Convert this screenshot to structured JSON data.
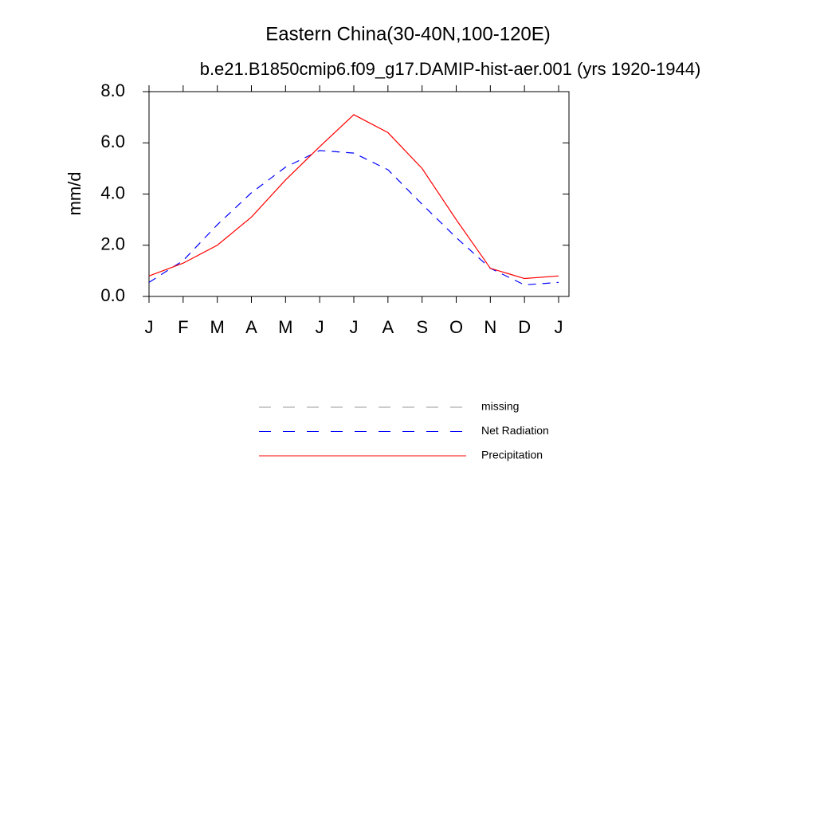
{
  "chart_data": {
    "type": "line",
    "title": "Eastern China(30-40N,100-120E)",
    "subtitle": "b.e21.B1850cmip6.f09_g17.DAMIP-hist-aer.001 (yrs 1920-1944)",
    "y_label": "mm/d",
    "categories": [
      "J",
      "F",
      "M",
      "A",
      "M",
      "J",
      "J",
      "A",
      "S",
      "O",
      "N",
      "D",
      "J"
    ],
    "series": [
      {
        "name": "missing",
        "color": "#999999",
        "dash": "dashed",
        "values": [
          null,
          null,
          null,
          null,
          null,
          null,
          null,
          null,
          null,
          null,
          null,
          null,
          null
        ]
      },
      {
        "name": "Net Radiation",
        "color": "#0000ff",
        "dash": "dashed",
        "values": [
          0.55,
          1.4,
          2.8,
          4.05,
          5.05,
          5.7,
          5.6,
          4.95,
          3.6,
          2.3,
          1.1,
          0.45,
          0.55
        ]
      },
      {
        "name": "Precipitation",
        "color": "#ff0000",
        "dash": "solid",
        "values": [
          0.8,
          1.3,
          2.0,
          3.1,
          4.55,
          5.85,
          7.1,
          6.4,
          5.0,
          3.0,
          1.1,
          0.7,
          0.8
        ]
      }
    ],
    "ylim": [
      0,
      8
    ],
    "yticks": [
      {
        "value": 0,
        "label": "0.0"
      },
      {
        "value": 2,
        "label": "2.0"
      },
      {
        "value": 4,
        "label": "4.0"
      },
      {
        "value": 6,
        "label": "6.0"
      },
      {
        "value": 8,
        "label": "8.0"
      }
    ],
    "grid": false
  }
}
